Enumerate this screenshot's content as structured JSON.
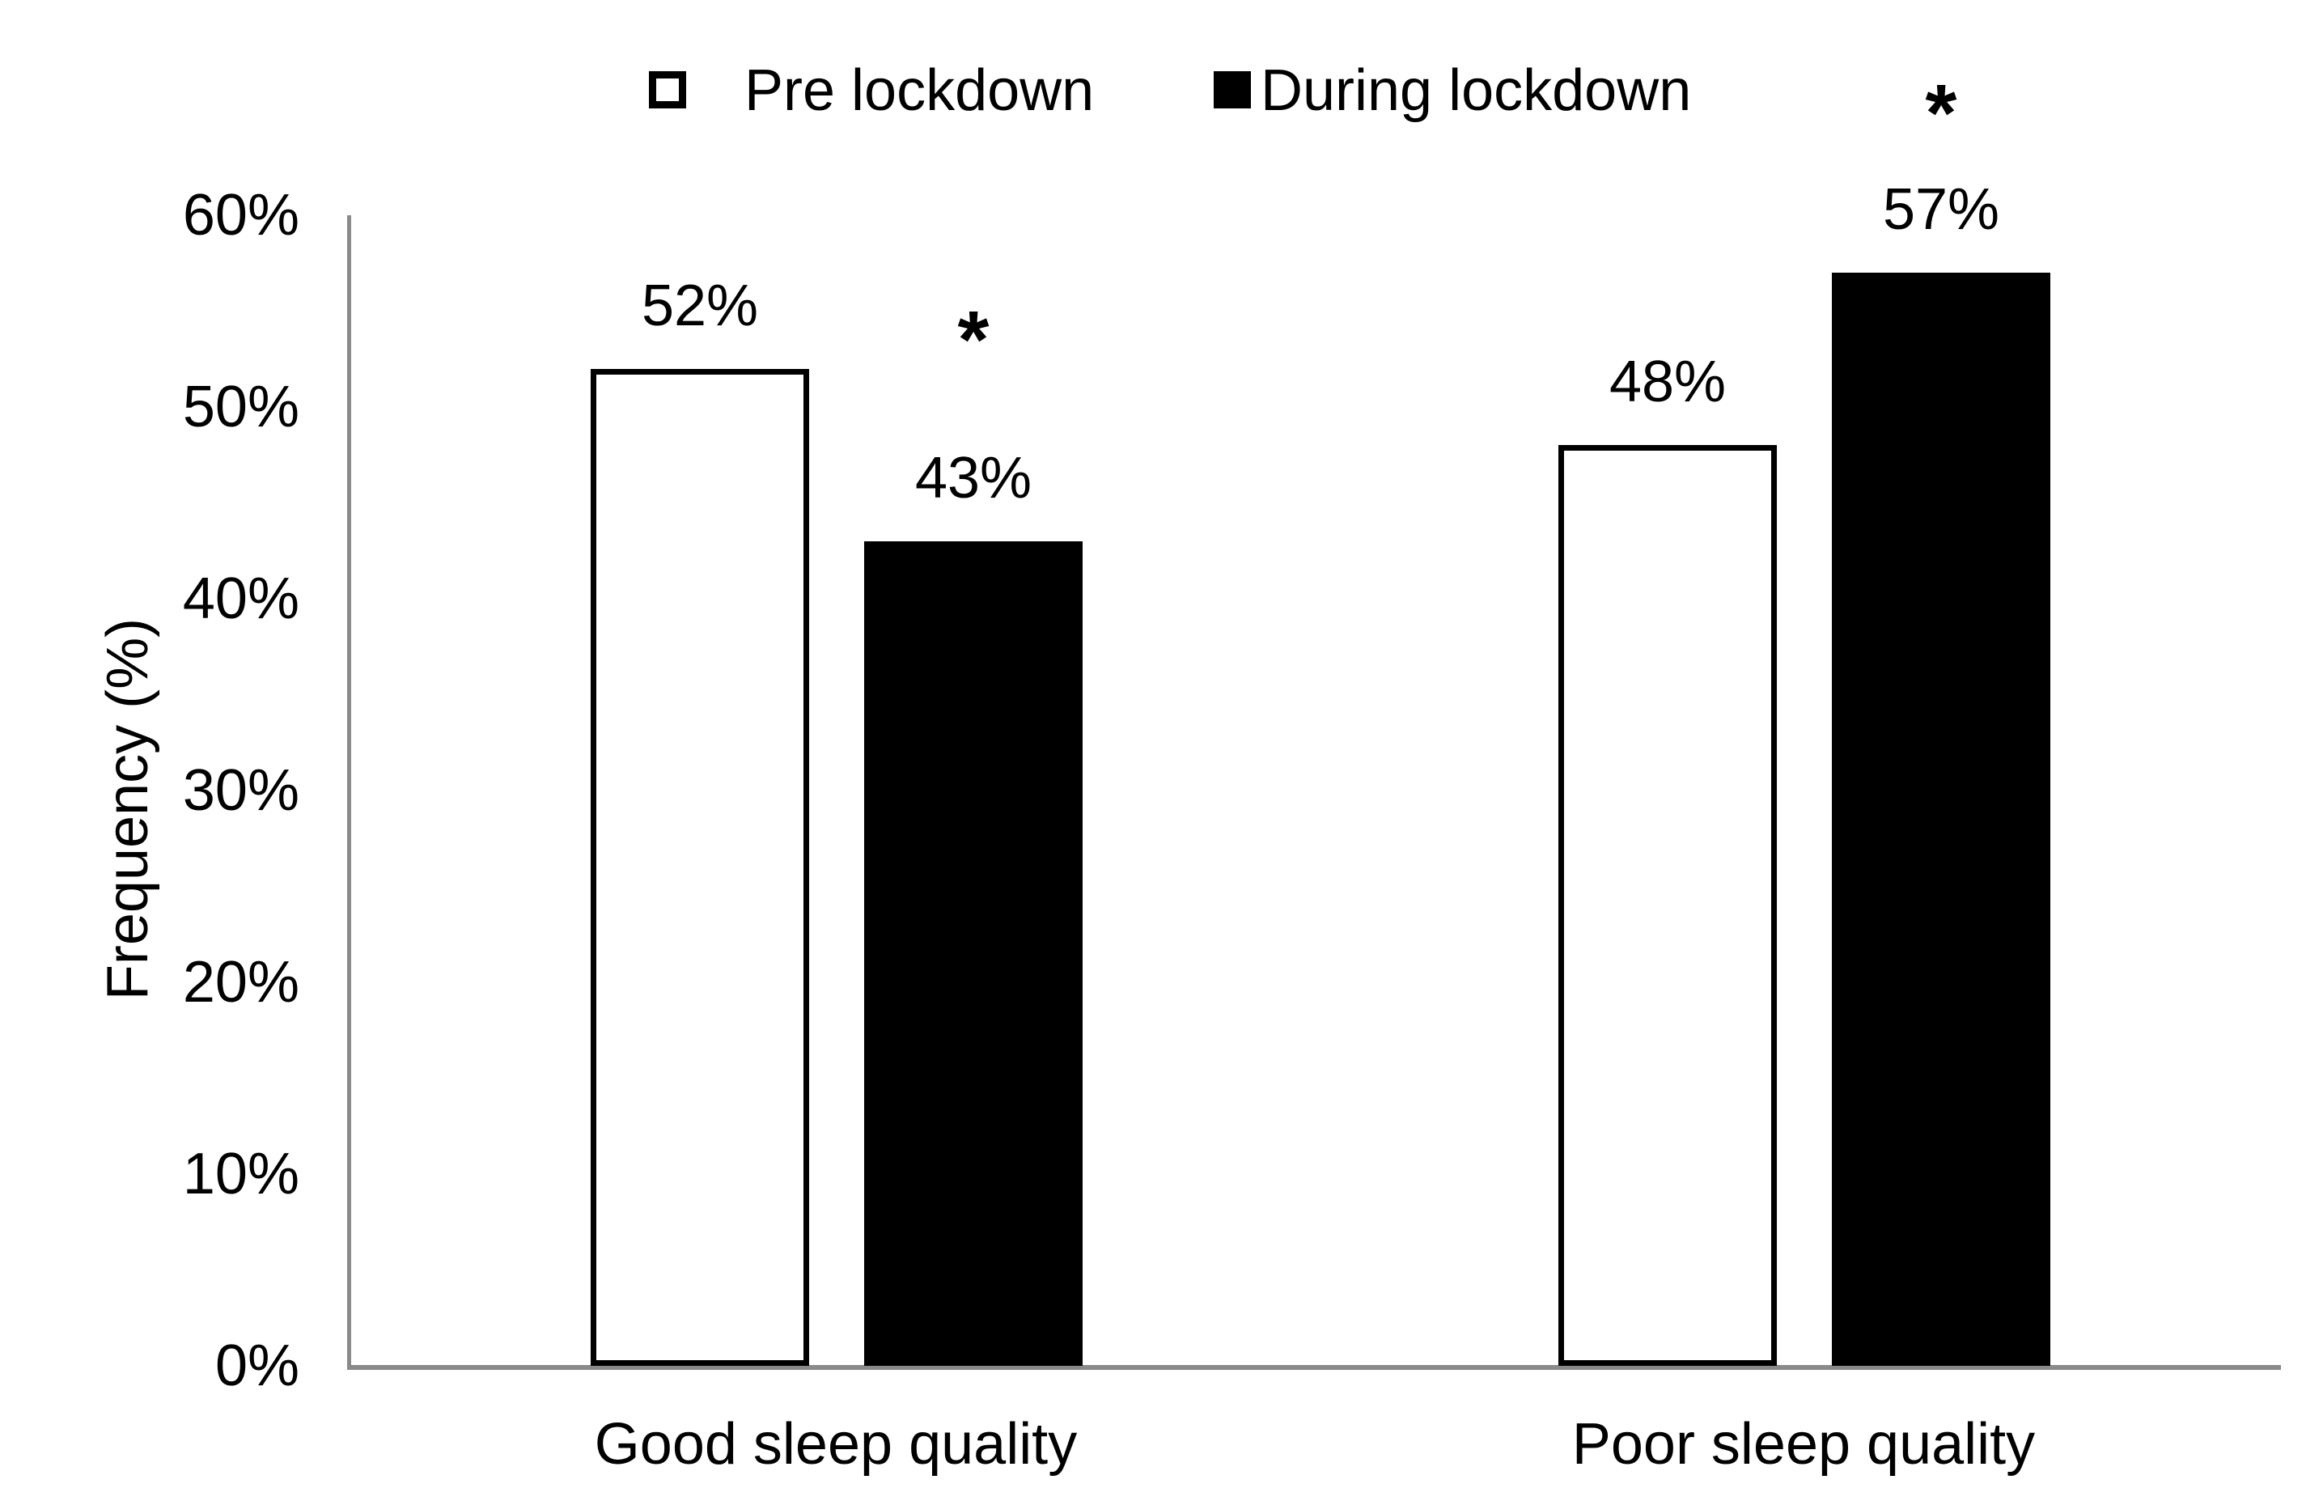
{
  "chart_data": {
    "type": "bar",
    "title": "",
    "xlabel": "",
    "ylabel": "Frequency (%)",
    "ylim": [
      0,
      60
    ],
    "grid": false,
    "legend_position": "top-center",
    "significance_marker": "*",
    "categories": [
      "Good sleep quality",
      "Poor sleep quality"
    ],
    "series": [
      {
        "name": "Pre lockdown",
        "values": [
          52,
          48
        ],
        "value_labels": [
          "52%",
          "48%"
        ],
        "significance": [
          false,
          false
        ],
        "fill": "#ffffff",
        "border": "#000000",
        "swatch": "white-outlined-square"
      },
      {
        "name": "During lockdown",
        "values": [
          43,
          57
        ],
        "value_labels": [
          "43%",
          "57%"
        ],
        "significance": [
          true,
          true
        ],
        "fill": "#000000",
        "border": "#000000",
        "swatch": "black-filled-square"
      }
    ],
    "yticks": [
      {
        "value": 0,
        "label": "0%"
      },
      {
        "value": 10,
        "label": "10%"
      },
      {
        "value": 20,
        "label": "20%"
      },
      {
        "value": 30,
        "label": "30%"
      },
      {
        "value": 40,
        "label": "40%"
      },
      {
        "value": 50,
        "label": "50%"
      },
      {
        "value": 60,
        "label": "60%"
      }
    ],
    "colors": {
      "axis": "#8a8a8a",
      "text": "#000000",
      "bar_fill": "#000000",
      "bar_outline": "#000000",
      "background": "#ffffff"
    }
  }
}
